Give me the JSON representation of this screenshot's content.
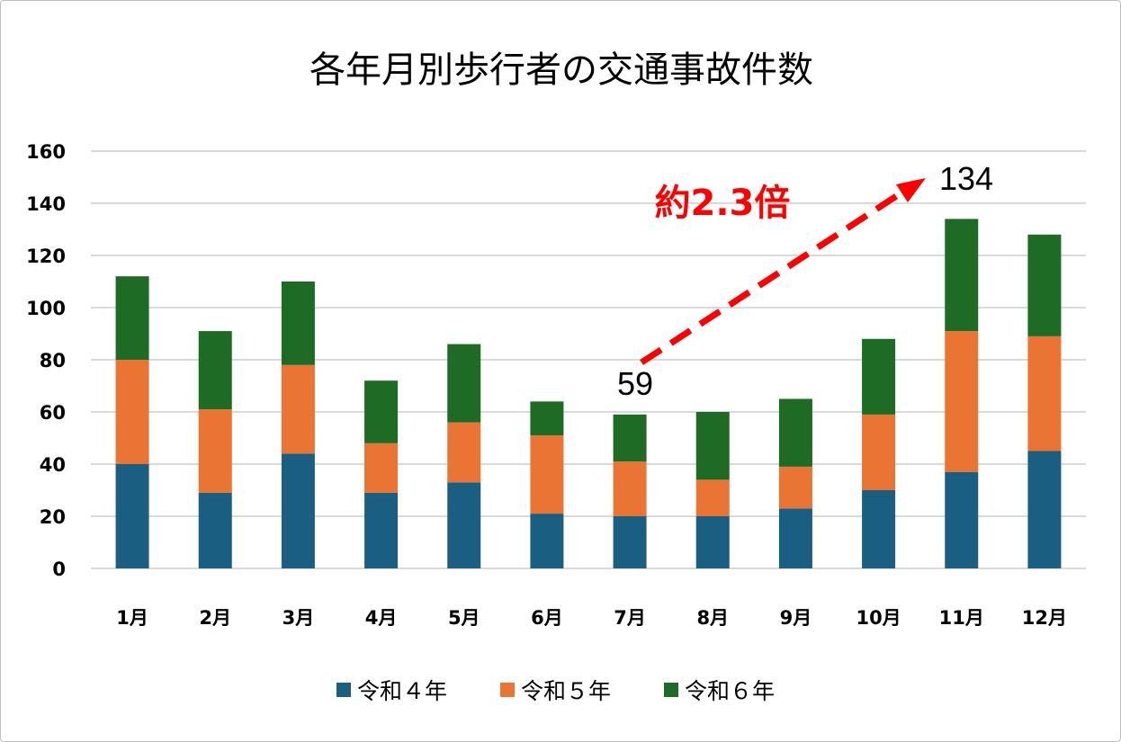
{
  "chart_data": {
    "type": "bar",
    "stacked": true,
    "title": "各年月別歩行者の交通事故件数",
    "xlabel": "",
    "ylabel": "",
    "categories": [
      "1月",
      "2月",
      "3月",
      "4月",
      "5月",
      "6月",
      "7月",
      "8月",
      "9月",
      "10月",
      "11月",
      "12月"
    ],
    "series": [
      {
        "name": "令和４年",
        "color": "#1a5f82",
        "values": [
          40,
          29,
          44,
          29,
          33,
          21,
          20,
          20,
          23,
          30,
          37,
          45
        ]
      },
      {
        "name": "令和５年",
        "color": "#e97434",
        "values": [
          40,
          32,
          34,
          19,
          23,
          30,
          21,
          14,
          16,
          29,
          54,
          44
        ]
      },
      {
        "name": "令和６年",
        "color": "#1d6b25",
        "values": [
          32,
          30,
          32,
          24,
          30,
          13,
          18,
          26,
          26,
          29,
          43,
          39
        ]
      }
    ],
    "ylim": [
      0,
      160
    ],
    "yticks": [
      "0",
      "20",
      "40",
      "60",
      "80",
      "100",
      "120",
      "140",
      "160"
    ],
    "grid": true,
    "legend_position": "bottom",
    "annotations": {
      "start_label": "59",
      "end_label": "134",
      "ratio_label": "約2.3倍",
      "arrow_color": "#ff0000"
    }
  }
}
